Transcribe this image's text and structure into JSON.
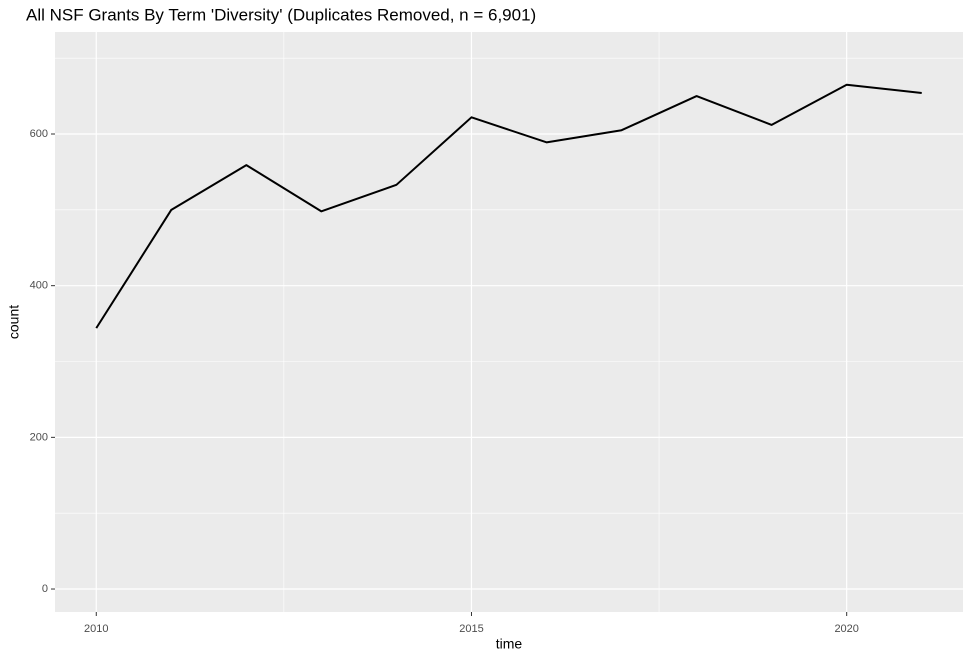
{
  "chart_data": {
    "type": "line",
    "title": "All NSF Grants By Term 'Diversity' (Duplicates Removed, n = 6,901)",
    "x_label": "time",
    "y_label": "count",
    "x": [
      2010,
      2011,
      2012,
      2013,
      2014,
      2015,
      2016,
      2017,
      2018,
      2019,
      2020,
      2021
    ],
    "series": [
      {
        "name": "count",
        "color": "#000000",
        "values": [
          344,
          500,
          559,
          498,
          533,
          622,
          589,
          605,
          650,
          612,
          665,
          654
        ]
      }
    ],
    "xlim": [
      2009.45,
      2021.55
    ],
    "xticks": [
      2010,
      2015,
      2020
    ],
    "ylim": [
      -30.3,
      734.5
    ],
    "yticks": [
      0,
      200,
      400,
      600
    ],
    "grid": true,
    "panel_color": "#ebebeb"
  }
}
